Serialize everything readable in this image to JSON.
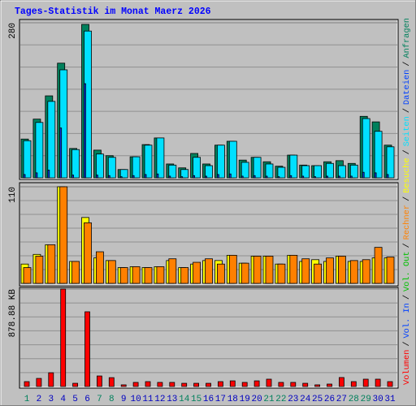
{
  "chart_data": [
    {
      "type": "bar",
      "title": "Tages-Statistik im Monat Maerz 2026",
      "legend_separator": "/",
      "ylim": [
        0,
        280
      ],
      "yticks": [
        280
      ],
      "series": [
        {
          "name": "Anfragen",
          "color": "#00805c",
          "values": [
            70,
            106,
            148,
            207,
            53,
            277,
            50,
            40,
            15,
            38,
            60,
            72,
            25,
            18,
            44,
            25,
            59,
            66,
            32,
            37,
            29,
            21,
            41,
            23,
            22,
            29,
            31,
            26,
            111,
            101,
            59
          ]
        },
        {
          "name": "Dateien",
          "color": "#0040ff",
          "values": [
            6,
            9,
            14,
            90,
            5,
            170,
            5,
            4,
            2,
            4,
            6,
            7,
            3,
            2,
            4,
            3,
            6,
            7,
            3,
            4,
            3,
            2,
            4,
            3,
            2,
            3,
            3,
            3,
            10,
            9,
            6
          ]
        },
        {
          "name": "Seiten",
          "color": "#00e0ff",
          "values": [
            67,
            100,
            138,
            195,
            51,
            265,
            43,
            37,
            15,
            38,
            59,
            72,
            23,
            15,
            37,
            22,
            59,
            66,
            28,
            37,
            25,
            19,
            41,
            22,
            22,
            26,
            22,
            23,
            107,
            84,
            56
          ]
        }
      ]
    },
    {
      "type": "bar",
      "ylim": [
        0,
        110
      ],
      "yticks": [
        110
      ],
      "series": [
        {
          "name": "Besuche",
          "color": "#ffff00",
          "values": [
            22,
            33,
            44,
            110,
            25,
            75,
            29,
            26,
            18,
            19,
            18,
            19,
            26,
            18,
            22,
            26,
            26,
            32,
            23,
            31,
            31,
            22,
            32,
            25,
            27,
            25,
            31,
            25,
            25,
            29,
            29
          ]
        },
        {
          "name": "Rechner",
          "color": "#ff8000",
          "values": [
            18,
            31,
            44,
            110,
            25,
            69,
            36,
            26,
            18,
            19,
            18,
            19,
            28,
            18,
            24,
            28,
            22,
            32,
            23,
            31,
            31,
            22,
            32,
            28,
            22,
            29,
            31,
            26,
            27,
            41,
            30
          ]
        }
      ]
    },
    {
      "type": "bar",
      "ylim": [
        0,
        878.88
      ],
      "yticks": [
        {
          "value": 878.88,
          "label": "878.88 KB"
        }
      ],
      "categories": [
        "1",
        "2",
        "3",
        "4",
        "5",
        "6",
        "7",
        "8",
        "9",
        "10",
        "11",
        "12",
        "13",
        "14",
        "15",
        "16",
        "17",
        "18",
        "19",
        "20",
        "21",
        "22",
        "23",
        "24",
        "25",
        "26",
        "27",
        "28",
        "29",
        "30",
        "31"
      ],
      "label_colors": [
        "#00805c",
        "#0000c0",
        "#0000c0",
        "#0000c0",
        "#0000c0",
        "#0000c0",
        "#00805c",
        "#00805c",
        "#0000c0",
        "#0000c0",
        "#0000c0",
        "#0000c0",
        "#0000c0",
        "#00805c",
        "#00805c",
        "#0000c0",
        "#0000c0",
        "#0000c0",
        "#0000c0",
        "#0000c0",
        "#00805c",
        "#00805c",
        "#0000c0",
        "#0000c0",
        "#0000c0",
        "#0000c0",
        "#0000c0",
        "#00805c",
        "#00805c",
        "#0000c0",
        "#0000c0"
      ],
      "series": [
        {
          "name": "Volumen",
          "color": "#ff0000",
          "values": [
            44,
            73,
            124,
            879,
            29,
            674,
            95,
            80,
            15,
            37,
            44,
            37,
            37,
            29,
            29,
            29,
            44,
            51,
            37,
            51,
            66,
            37,
            37,
            29,
            15,
            22,
            81,
            44,
            66,
            66,
            44
          ]
        }
      ],
      "extra_legend": [
        {
          "name": "Vol. In",
          "color": "#0040ff"
        },
        {
          "name": "Vol. Out",
          "color": "#00c000"
        }
      ]
    }
  ]
}
